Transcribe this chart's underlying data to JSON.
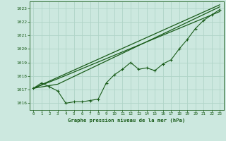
{
  "title": "Graphe pression niveau de la mer (hPa)",
  "background_color": "#cce8df",
  "grid_color": "#b0d4c8",
  "line_color": "#1a5c1a",
  "xlim": [
    -0.5,
    23.5
  ],
  "ylim": [
    1015.5,
    1023.5
  ],
  "yticks": [
    1016,
    1017,
    1018,
    1019,
    1020,
    1021,
    1022,
    1023
  ],
  "xticks": [
    0,
    1,
    2,
    3,
    4,
    5,
    6,
    7,
    8,
    9,
    10,
    11,
    12,
    13,
    14,
    15,
    16,
    17,
    18,
    19,
    20,
    21,
    22,
    23
  ],
  "series1": {
    "x": [
      0,
      1,
      2,
      3,
      4,
      5,
      6,
      7,
      8,
      9,
      10,
      11,
      12,
      13,
      14,
      15,
      16,
      17,
      18,
      19,
      20,
      21,
      22,
      23
    ],
    "y": [
      1017.1,
      1017.5,
      1017.2,
      1016.9,
      1016.0,
      1016.1,
      1016.1,
      1016.2,
      1016.3,
      1017.5,
      1018.1,
      1018.5,
      1019.0,
      1018.5,
      1018.6,
      1018.4,
      1018.9,
      1019.2,
      1020.0,
      1020.7,
      1021.5,
      1022.1,
      1022.5,
      1022.9
    ]
  },
  "series2": {
    "x": [
      0,
      3,
      23
    ],
    "y": [
      1017.1,
      1017.4,
      1023.1
    ]
  },
  "series3": {
    "x": [
      0,
      3,
      23
    ],
    "y": [
      1017.1,
      1017.8,
      1022.75
    ]
  },
  "series4": {
    "x": [
      0,
      23
    ],
    "y": [
      1017.1,
      1023.25
    ]
  }
}
